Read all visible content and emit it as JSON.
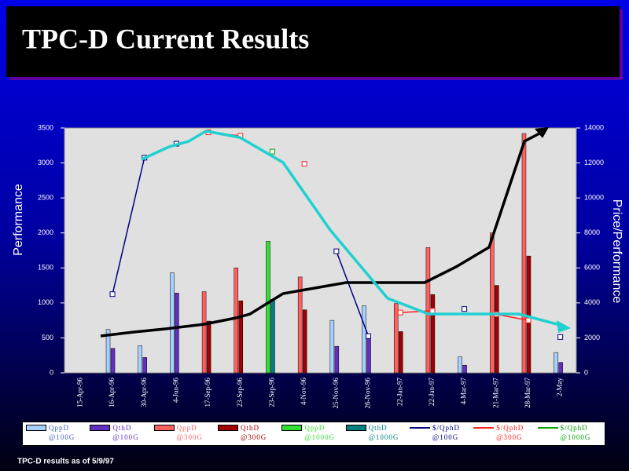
{
  "chart_data": {
    "type": "bar",
    "title": "TPC-D Current Results",
    "y_label": "Performance",
    "y2_label": "Price/Performance",
    "footnote": "TPC-D results as of 5/9/97",
    "categories": [
      "15-Apr-96",
      "16-Apr-96",
      "30-Apr-96",
      "4-Jun-96",
      "17-Sep-96",
      "23-Sep-96",
      "23-Sep-96",
      "4-Nov-96",
      "25-Nov-96",
      "26-Nov-96",
      "22-Jan-97",
      "22-Jan-97",
      "4-Mar-97",
      "21-Mar-97",
      "28-Mar-97",
      "2-May"
    ],
    "ylim": [
      0,
      3500
    ],
    "yticks": [
      0,
      500,
      1000,
      1500,
      2000,
      2500,
      3000,
      3500
    ],
    "y2lim": [
      0,
      14000
    ],
    "y2ticks": [
      0,
      2000,
      4000,
      6000,
      8000,
      10000,
      12000,
      14000
    ],
    "series": [
      {
        "name": "QppD @100G",
        "color": "#a8d0ff",
        "values": [
          null,
          620,
          390,
          1430,
          null,
          null,
          null,
          null,
          750,
          960,
          null,
          null,
          230,
          null,
          null,
          290
        ]
      },
      {
        "name": "QthD @100G",
        "color": "#6030c0",
        "values": [
          null,
          350,
          220,
          1140,
          null,
          null,
          null,
          null,
          380,
          500,
          null,
          null,
          110,
          null,
          null,
          150
        ]
      },
      {
        "name": "QppD @300G",
        "color": "#ff6060",
        "values": [
          null,
          null,
          null,
          null,
          1160,
          1500,
          null,
          1370,
          null,
          null,
          990,
          1790,
          null,
          2000,
          3420,
          null
        ]
      },
      {
        "name": "QthD @300G",
        "color": "#a00000",
        "values": [
          null,
          null,
          null,
          null,
          740,
          1030,
          null,
          900,
          null,
          null,
          590,
          1120,
          null,
          1250,
          1670,
          null
        ]
      },
      {
        "name": "QppD @1000G",
        "color": "#30e030",
        "values": [
          null,
          null,
          null,
          null,
          null,
          null,
          1880,
          null,
          null,
          null,
          null,
          null,
          null,
          null,
          null,
          null
        ]
      },
      {
        "name": "QthD @1000G",
        "color": "#008080",
        "values": [
          null,
          null,
          null,
          null,
          null,
          null,
          1050,
          null,
          null,
          null,
          null,
          null,
          null,
          null,
          null,
          null
        ]
      },
      {
        "name": "$/QphD @100G",
        "color": "#000080",
        "type": "line",
        "axis": "y2",
        "values": [
          null,
          4500,
          12300,
          13100,
          null,
          null,
          null,
          null,
          6950,
          2100,
          null,
          null,
          3650,
          null,
          null,
          2050
        ]
      },
      {
        "name": "$/QphD @300G",
        "color": "#ff2020",
        "type": "line",
        "axis": "y2",
        "values": [
          null,
          null,
          null,
          null,
          13750,
          13550,
          null,
          11950,
          null,
          null,
          3450,
          3550,
          null,
          3350,
          3000,
          null
        ]
      },
      {
        "name": "$/QphD @1000G",
        "color": "#00a000",
        "type": "line",
        "axis": "y2",
        "values": [
          null,
          null,
          null,
          null,
          null,
          null,
          12650,
          null,
          null,
          null,
          null,
          null,
          null,
          null,
          null,
          null
        ]
      }
    ]
  }
}
